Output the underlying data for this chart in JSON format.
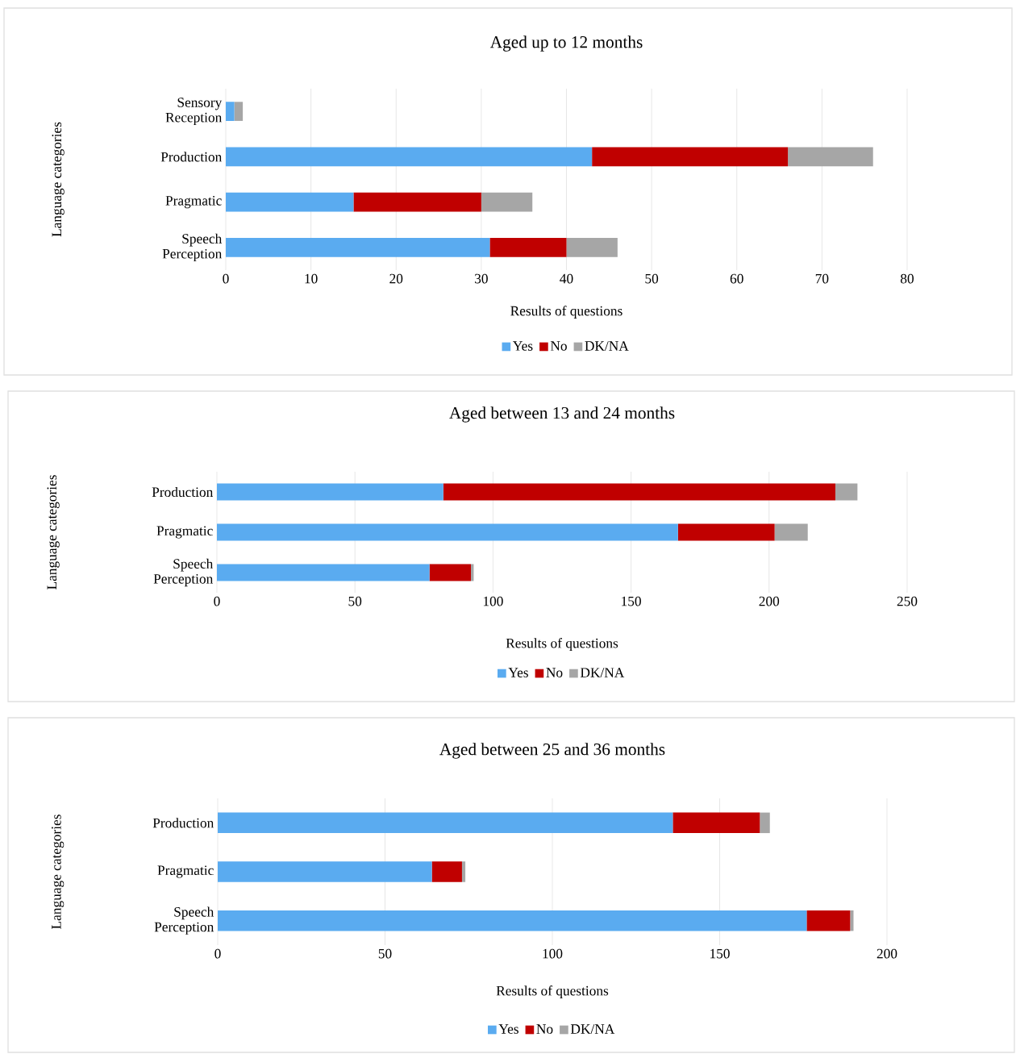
{
  "chart_data": [
    {
      "type": "bar",
      "orientation": "horizontal",
      "stacked": true,
      "title": "Aged up to 12 months",
      "xlabel": "Results of questions",
      "ylabel": "Language categories",
      "categories": [
        "Sensory Reception",
        "Production",
        "Pragmatic",
        "Speech Perception"
      ],
      "series": [
        {
          "name": "Yes",
          "color": "#5aabf0",
          "values": [
            1,
            43,
            15,
            31
          ]
        },
        {
          "name": "No",
          "color": "#c00000",
          "values": [
            0,
            23,
            15,
            9
          ]
        },
        {
          "name": "DK/NA",
          "color": "#a6a6a6",
          "values": [
            1,
            10,
            6,
            6
          ]
        }
      ],
      "xlim": [
        0,
        80
      ],
      "xticks": [
        0,
        10,
        20,
        30,
        40,
        50,
        60,
        70,
        80
      ],
      "grid": "x",
      "legend": "bottom"
    },
    {
      "type": "bar",
      "orientation": "horizontal",
      "stacked": true,
      "title": "Aged between 13 and 24 months",
      "xlabel": "Results of questions",
      "ylabel": "Language categories",
      "categories": [
        "Production",
        "Pragmatic",
        "Speech Perception"
      ],
      "series": [
        {
          "name": "Yes",
          "color": "#5aabf0",
          "values": [
            82,
            167,
            77
          ]
        },
        {
          "name": "No",
          "color": "#c00000",
          "values": [
            142,
            35,
            15
          ]
        },
        {
          "name": "DK/NA",
          "color": "#a6a6a6",
          "values": [
            8,
            12,
            1
          ]
        }
      ],
      "xlim": [
        0,
        250
      ],
      "xticks": [
        0,
        50,
        100,
        150,
        200,
        250
      ],
      "grid": "x",
      "legend": "bottom"
    },
    {
      "type": "bar",
      "orientation": "horizontal",
      "stacked": true,
      "title": "Aged between 25 and 36 months",
      "xlabel": "Results of questions",
      "ylabel": "Language categories",
      "categories": [
        "Production",
        "Pragmatic",
        "Speech Perception"
      ],
      "series": [
        {
          "name": "Yes",
          "color": "#5aabf0",
          "values": [
            136,
            64,
            176
          ]
        },
        {
          "name": "No",
          "color": "#c00000",
          "values": [
            26,
            9,
            13
          ]
        },
        {
          "name": "DK/NA",
          "color": "#a6a6a6",
          "values": [
            3,
            1,
            1
          ]
        }
      ],
      "xlim": [
        0,
        200
      ],
      "xticks": [
        0,
        50,
        100,
        150,
        200
      ],
      "grid": "x",
      "legend": "bottom"
    }
  ]
}
